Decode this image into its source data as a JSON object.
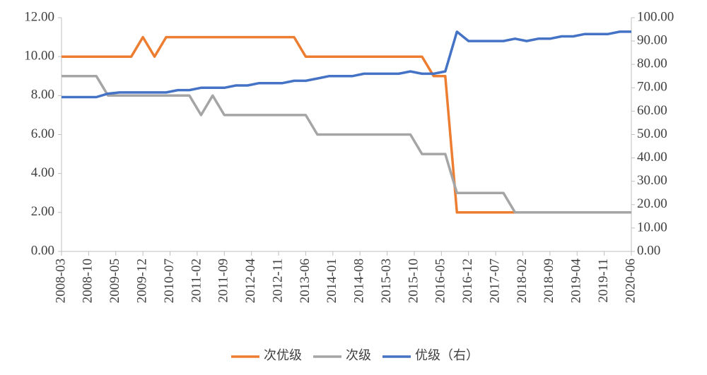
{
  "chart_data": {
    "type": "line",
    "x": [
      "2008-03",
      "2008-06",
      "2008-09",
      "2008-12",
      "2009-03",
      "2009-06",
      "2009-09",
      "2009-12",
      "2010-03",
      "2010-06",
      "2010-09",
      "2010-12",
      "2011-03",
      "2011-06",
      "2011-09",
      "2011-12",
      "2012-03",
      "2012-06",
      "2012-09",
      "2012-12",
      "2013-03",
      "2013-06",
      "2013-09",
      "2013-12",
      "2014-03",
      "2014-06",
      "2014-09",
      "2014-12",
      "2015-03",
      "2015-06",
      "2015-09",
      "2015-12",
      "2016-03",
      "2016-06",
      "2016-09",
      "2016-12",
      "2017-03",
      "2017-06",
      "2017-09",
      "2017-12",
      "2018-03",
      "2018-06",
      "2018-09",
      "2018-12",
      "2019-03",
      "2019-06",
      "2019-09",
      "2019-12",
      "2020-03",
      "2020-06"
    ],
    "series": [
      {
        "name": "次优级",
        "color": "#ED7D31",
        "values": [
          10,
          10,
          10,
          10,
          10,
          10,
          10,
          11,
          10,
          11,
          11,
          11,
          11,
          11,
          11,
          11,
          11,
          11,
          11,
          11,
          11,
          10,
          10,
          10,
          10,
          10,
          10,
          10,
          10,
          10,
          10,
          10,
          9,
          9,
          2,
          2,
          2,
          2,
          2,
          2,
          2,
          2,
          2,
          2,
          2,
          2,
          2,
          2,
          2,
          2
        ]
      },
      {
        "name": "次级",
        "color": "#A5A5A5",
        "values": [
          9,
          9,
          9,
          9,
          8,
          8,
          8,
          8,
          8,
          8,
          8,
          8,
          7,
          8,
          7,
          7,
          7,
          7,
          7,
          7,
          7,
          7,
          6,
          6,
          6,
          6,
          6,
          6,
          6,
          6,
          6,
          5,
          5,
          5,
          3,
          3,
          3,
          3,
          3,
          2,
          2,
          2,
          2,
          2,
          2,
          2,
          2,
          2,
          2,
          2
        ]
      },
      {
        "name": "优级（右）",
        "color": "#4472C4",
        "axis": "y2",
        "values": [
          66,
          66,
          66,
          66,
          67.5,
          68,
          68,
          68,
          68,
          68,
          69,
          69,
          70,
          70,
          70,
          71,
          71,
          72,
          72,
          72,
          73,
          73,
          74,
          75,
          75,
          75,
          76,
          76,
          76,
          76,
          77,
          76,
          76,
          77,
          94,
          90,
          90,
          90,
          90,
          91,
          90,
          91,
          91,
          92,
          92,
          93,
          93,
          93,
          94,
          94
        ]
      }
    ],
    "xlim": [
      "2008-03",
      "2020-06"
    ],
    "xticks": [
      "2008-03",
      "2008-10",
      "2009-05",
      "2009-12",
      "2010-07",
      "2011-02",
      "2011-09",
      "2012-04",
      "2012-11",
      "2013-06",
      "2014-01",
      "2014-08",
      "2015-03",
      "2015-10",
      "2016-05",
      "2016-12",
      "2017-07",
      "2018-02",
      "2018-09",
      "2019-04",
      "2019-11",
      "2020-06"
    ],
    "ylim": [
      0,
      12
    ],
    "yticks": [
      {
        "value": 0,
        "label": "0.00"
      },
      {
        "value": 2,
        "label": "2.00"
      },
      {
        "value": 4,
        "label": "4.00"
      },
      {
        "value": 6,
        "label": "6.00"
      },
      {
        "value": 8,
        "label": "8.00"
      },
      {
        "value": 10,
        "label": "10.00"
      },
      {
        "value": 12,
        "label": "12.00"
      }
    ],
    "y2lim": [
      0,
      100
    ],
    "y2ticks": [
      {
        "value": 0,
        "label": "0.00"
      },
      {
        "value": 10,
        "label": "10.00"
      },
      {
        "value": 20,
        "label": "20.00"
      },
      {
        "value": 30,
        "label": "30.00"
      },
      {
        "value": 40,
        "label": "40.00"
      },
      {
        "value": 50,
        "label": "50.00"
      },
      {
        "value": 60,
        "label": "60.00"
      },
      {
        "value": 70,
        "label": "70.00"
      },
      {
        "value": 80,
        "label": "80.00"
      },
      {
        "value": 90,
        "label": "90.00"
      },
      {
        "value": 100,
        "label": "100.00"
      }
    ],
    "legend": "bottom"
  }
}
